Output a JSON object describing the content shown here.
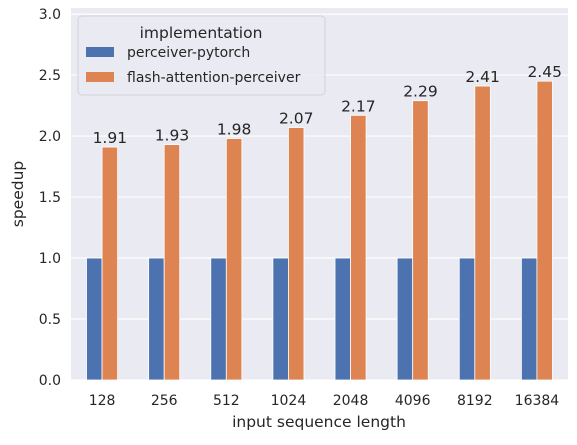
{
  "chart_data": {
    "type": "bar",
    "title": "",
    "xlabel": "input sequence length",
    "ylabel": "speedup",
    "categories": [
      "128",
      "256",
      "512",
      "1024",
      "2048",
      "4096",
      "8192",
      "16384"
    ],
    "series": [
      {
        "name": "perceiver-pytorch",
        "values": [
          1,
          1,
          1,
          1,
          1,
          1,
          1,
          1
        ],
        "color": "#4c72b0"
      },
      {
        "name": "flash-attention-perceiver",
        "values": [
          1.91,
          1.93,
          1.98,
          2.07,
          2.17,
          2.29,
          2.41,
          2.45
        ],
        "color": "#dd8452"
      }
    ],
    "data_labels": [
      "1.91",
      "1.93",
      "1.98",
      "2.07",
      "2.17",
      "2.29",
      "2.41",
      "2.45"
    ],
    "ylim": [
      0,
      3.05
    ],
    "yticks": [
      "0.0",
      "0.5",
      "1.0",
      "1.5",
      "2.0",
      "2.5",
      "3.0"
    ],
    "grid": true,
    "legend": {
      "title": "implementation",
      "placement": "top-left"
    },
    "colors": {
      "plot_background": "#eaeaf2",
      "grid": "#ffffff",
      "text": "#262626"
    }
  }
}
